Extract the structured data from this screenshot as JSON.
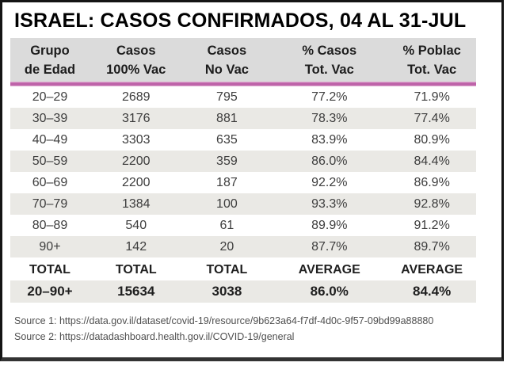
{
  "title": "ISRAEL: CASOS CONFIRMADOS, 04 AL 31-JUL",
  "table": {
    "columns": [
      {
        "line1": "Grupo",
        "line2": "de Edad"
      },
      {
        "line1": "Casos",
        "line2": "100% Vac"
      },
      {
        "line1": "Casos",
        "line2": "No Vac"
      },
      {
        "line1": "% Casos",
        "line2": "Tot. Vac"
      },
      {
        "line1": "% Poblac",
        "line2": "Tot. Vac"
      }
    ],
    "rows": [
      [
        "20–29",
        "2689",
        "795",
        "77.2%",
        "71.9%"
      ],
      [
        "30–39",
        "3176",
        "881",
        "78.3%",
        "77.4%"
      ],
      [
        "40–49",
        "3303",
        "635",
        "83.9%",
        "80.9%"
      ],
      [
        "50–59",
        "2200",
        "359",
        "86.0%",
        "84.4%"
      ],
      [
        "60–69",
        "2200",
        "187",
        "92.2%",
        "86.9%"
      ],
      [
        "70–79",
        "1384",
        "100",
        "93.3%",
        "92.8%"
      ],
      [
        "80–89",
        "540",
        "61",
        "89.9%",
        "91.2%"
      ],
      [
        "90+",
        "142",
        "20",
        "87.7%",
        "89.7%"
      ]
    ],
    "totals_label_row": [
      "TOTAL",
      "TOTAL",
      "TOTAL",
      "AVERAGE",
      "AVERAGE"
    ],
    "totals_value_row": [
      "20–90+",
      "15634",
      "3038",
      "86.0%",
      "84.4%"
    ]
  },
  "sources": [
    "Source 1: https://data.gov.il/dataset/covid-19/resource/9b623a64-f7df-4d0c-9f57-09bd99a88880",
    "Source 2: https://datadashboard.health.gov.il/COVID-19/general"
  ],
  "colors": {
    "header_bg": "#dbdbdb",
    "stripe_bg": "#eae9e5",
    "pink_rule": "#bd62a8",
    "border": "#141414",
    "cell_text": "#3d3d3d"
  },
  "chart_data": {
    "type": "table",
    "title": "ISRAEL: CASOS CONFIRMADOS, 04 AL 31-JUL",
    "columns": [
      "Grupo de Edad",
      "Casos 100% Vac",
      "Casos No Vac",
      "% Casos Tot. Vac",
      "% Poblac Tot. Vac"
    ],
    "rows": [
      {
        "grupo_de_edad": "20-29",
        "casos_100_vac": 2689,
        "casos_no_vac": 795,
        "pct_casos_tot_vac": 77.2,
        "pct_poblac_tot_vac": 71.9
      },
      {
        "grupo_de_edad": "30-39",
        "casos_100_vac": 3176,
        "casos_no_vac": 881,
        "pct_casos_tot_vac": 78.3,
        "pct_poblac_tot_vac": 77.4
      },
      {
        "grupo_de_edad": "40-49",
        "casos_100_vac": 3303,
        "casos_no_vac": 635,
        "pct_casos_tot_vac": 83.9,
        "pct_poblac_tot_vac": 80.9
      },
      {
        "grupo_de_edad": "50-59",
        "casos_100_vac": 2200,
        "casos_no_vac": 359,
        "pct_casos_tot_vac": 86.0,
        "pct_poblac_tot_vac": 84.4
      },
      {
        "grupo_de_edad": "60-69",
        "casos_100_vac": 2200,
        "casos_no_vac": 187,
        "pct_casos_tot_vac": 92.2,
        "pct_poblac_tot_vac": 86.9
      },
      {
        "grupo_de_edad": "70-79",
        "casos_100_vac": 1384,
        "casos_no_vac": 100,
        "pct_casos_tot_vac": 93.3,
        "pct_poblac_tot_vac": 92.8
      },
      {
        "grupo_de_edad": "80-89",
        "casos_100_vac": 540,
        "casos_no_vac": 61,
        "pct_casos_tot_vac": 89.9,
        "pct_poblac_tot_vac": 91.2
      },
      {
        "grupo_de_edad": "90+",
        "casos_100_vac": 142,
        "casos_no_vac": 20,
        "pct_casos_tot_vac": 87.7,
        "pct_poblac_tot_vac": 89.7
      }
    ],
    "totals": {
      "grupo_de_edad": "20-90+",
      "casos_100_vac": 15634,
      "casos_no_vac": 3038,
      "avg_pct_casos_tot_vac": 86.0,
      "avg_pct_poblac_tot_vac": 84.4
    }
  }
}
